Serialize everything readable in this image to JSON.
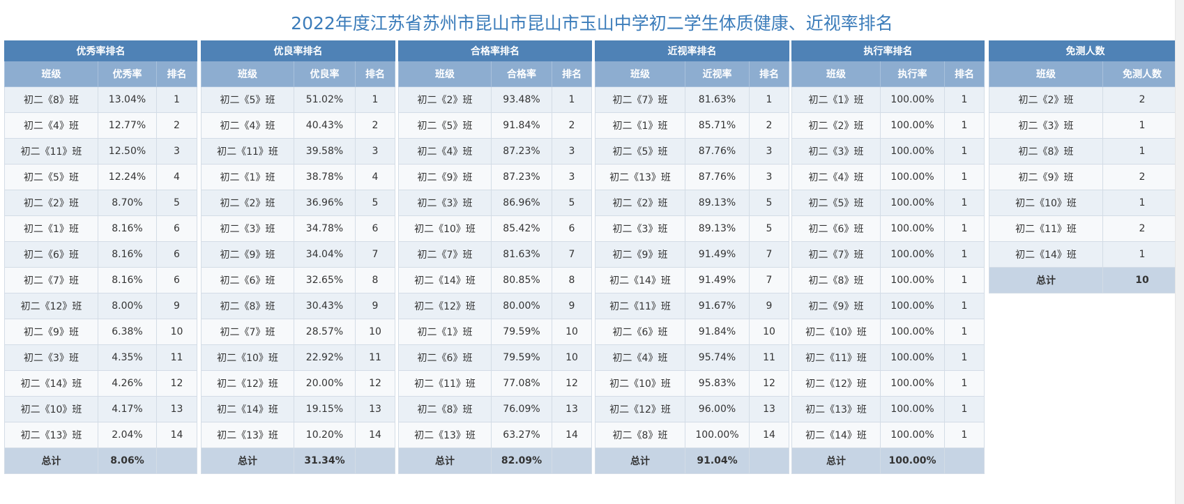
{
  "title": "2022年度江苏省苏州市昆山市昆山市玉山中学初二学生体质健康、近视率排名",
  "tables": [
    {
      "caption": "优秀率排名",
      "headers": [
        "班级",
        "优秀率",
        "排名"
      ],
      "rows": [
        [
          "初二《8》班",
          "13.04%",
          "1"
        ],
        [
          "初二《4》班",
          "12.77%",
          "2"
        ],
        [
          "初二《11》班",
          "12.50%",
          "3"
        ],
        [
          "初二《5》班",
          "12.24%",
          "4"
        ],
        [
          "初二《2》班",
          "8.70%",
          "5"
        ],
        [
          "初二《1》班",
          "8.16%",
          "6"
        ],
        [
          "初二《6》班",
          "8.16%",
          "6"
        ],
        [
          "初二《7》班",
          "8.16%",
          "6"
        ],
        [
          "初二《12》班",
          "8.00%",
          "9"
        ],
        [
          "初二《9》班",
          "6.38%",
          "10"
        ],
        [
          "初二《3》班",
          "4.35%",
          "11"
        ],
        [
          "初二《14》班",
          "4.26%",
          "12"
        ],
        [
          "初二《10》班",
          "4.17%",
          "13"
        ],
        [
          "初二《13》班",
          "2.04%",
          "14"
        ]
      ],
      "total": [
        "总计",
        "8.06%",
        ""
      ]
    },
    {
      "caption": "优良率排名",
      "headers": [
        "班级",
        "优良率",
        "排名"
      ],
      "rows": [
        [
          "初二《5》班",
          "51.02%",
          "1"
        ],
        [
          "初二《4》班",
          "40.43%",
          "2"
        ],
        [
          "初二《11》班",
          "39.58%",
          "3"
        ],
        [
          "初二《1》班",
          "38.78%",
          "4"
        ],
        [
          "初二《2》班",
          "36.96%",
          "5"
        ],
        [
          "初二《3》班",
          "34.78%",
          "6"
        ],
        [
          "初二《9》班",
          "34.04%",
          "7"
        ],
        [
          "初二《6》班",
          "32.65%",
          "8"
        ],
        [
          "初二《8》班",
          "30.43%",
          "9"
        ],
        [
          "初二《7》班",
          "28.57%",
          "10"
        ],
        [
          "初二《10》班",
          "22.92%",
          "11"
        ],
        [
          "初二《12》班",
          "20.00%",
          "12"
        ],
        [
          "初二《14》班",
          "19.15%",
          "13"
        ],
        [
          "初二《13》班",
          "10.20%",
          "14"
        ]
      ],
      "total": [
        "总计",
        "31.34%",
        ""
      ]
    },
    {
      "caption": "合格率排名",
      "headers": [
        "班级",
        "合格率",
        "排名"
      ],
      "rows": [
        [
          "初二《2》班",
          "93.48%",
          "1"
        ],
        [
          "初二《5》班",
          "91.84%",
          "2"
        ],
        [
          "初二《4》班",
          "87.23%",
          "3"
        ],
        [
          "初二《9》班",
          "87.23%",
          "3"
        ],
        [
          "初二《3》班",
          "86.96%",
          "5"
        ],
        [
          "初二《10》班",
          "85.42%",
          "6"
        ],
        [
          "初二《7》班",
          "81.63%",
          "7"
        ],
        [
          "初二《14》班",
          "80.85%",
          "8"
        ],
        [
          "初二《12》班",
          "80.00%",
          "9"
        ],
        [
          "初二《1》班",
          "79.59%",
          "10"
        ],
        [
          "初二《6》班",
          "79.59%",
          "10"
        ],
        [
          "初二《11》班",
          "77.08%",
          "12"
        ],
        [
          "初二《8》班",
          "76.09%",
          "13"
        ],
        [
          "初二《13》班",
          "63.27%",
          "14"
        ]
      ],
      "total": [
        "总计",
        "82.09%",
        ""
      ]
    },
    {
      "caption": "近视率排名",
      "headers": [
        "班级",
        "近视率",
        "排名"
      ],
      "rows": [
        [
          "初二《7》班",
          "81.63%",
          "1"
        ],
        [
          "初二《1》班",
          "85.71%",
          "2"
        ],
        [
          "初二《5》班",
          "87.76%",
          "3"
        ],
        [
          "初二《13》班",
          "87.76%",
          "3"
        ],
        [
          "初二《2》班",
          "89.13%",
          "5"
        ],
        [
          "初二《3》班",
          "89.13%",
          "5"
        ],
        [
          "初二《9》班",
          "91.49%",
          "7"
        ],
        [
          "初二《14》班",
          "91.49%",
          "7"
        ],
        [
          "初二《11》班",
          "91.67%",
          "9"
        ],
        [
          "初二《6》班",
          "91.84%",
          "10"
        ],
        [
          "初二《4》班",
          "95.74%",
          "11"
        ],
        [
          "初二《10》班",
          "95.83%",
          "12"
        ],
        [
          "初二《12》班",
          "96.00%",
          "13"
        ],
        [
          "初二《8》班",
          "100.00%",
          "14"
        ]
      ],
      "total": [
        "总计",
        "91.04%",
        ""
      ]
    },
    {
      "caption": "执行率排名",
      "headers": [
        "班级",
        "执行率",
        "排名"
      ],
      "rows": [
        [
          "初二《1》班",
          "100.00%",
          "1"
        ],
        [
          "初二《2》班",
          "100.00%",
          "1"
        ],
        [
          "初二《3》班",
          "100.00%",
          "1"
        ],
        [
          "初二《4》班",
          "100.00%",
          "1"
        ],
        [
          "初二《5》班",
          "100.00%",
          "1"
        ],
        [
          "初二《6》班",
          "100.00%",
          "1"
        ],
        [
          "初二《7》班",
          "100.00%",
          "1"
        ],
        [
          "初二《8》班",
          "100.00%",
          "1"
        ],
        [
          "初二《9》班",
          "100.00%",
          "1"
        ],
        [
          "初二《10》班",
          "100.00%",
          "1"
        ],
        [
          "初二《11》班",
          "100.00%",
          "1"
        ],
        [
          "初二《12》班",
          "100.00%",
          "1"
        ],
        [
          "初二《13》班",
          "100.00%",
          "1"
        ],
        [
          "初二《14》班",
          "100.00%",
          "1"
        ]
      ],
      "total": [
        "总计",
        "100.00%",
        ""
      ]
    },
    {
      "caption": "免测人数",
      "headers": [
        "班级",
        "免测人数"
      ],
      "rows": [
        [
          "初二《2》班",
          "2"
        ],
        [
          "初二《3》班",
          "1"
        ],
        [
          "初二《8》班",
          "1"
        ],
        [
          "初二《9》班",
          "2"
        ],
        [
          "初二《10》班",
          "1"
        ],
        [
          "初二《11》班",
          "2"
        ],
        [
          "初二《14》班",
          "1"
        ]
      ],
      "total": [
        "总计",
        "10"
      ]
    }
  ]
}
